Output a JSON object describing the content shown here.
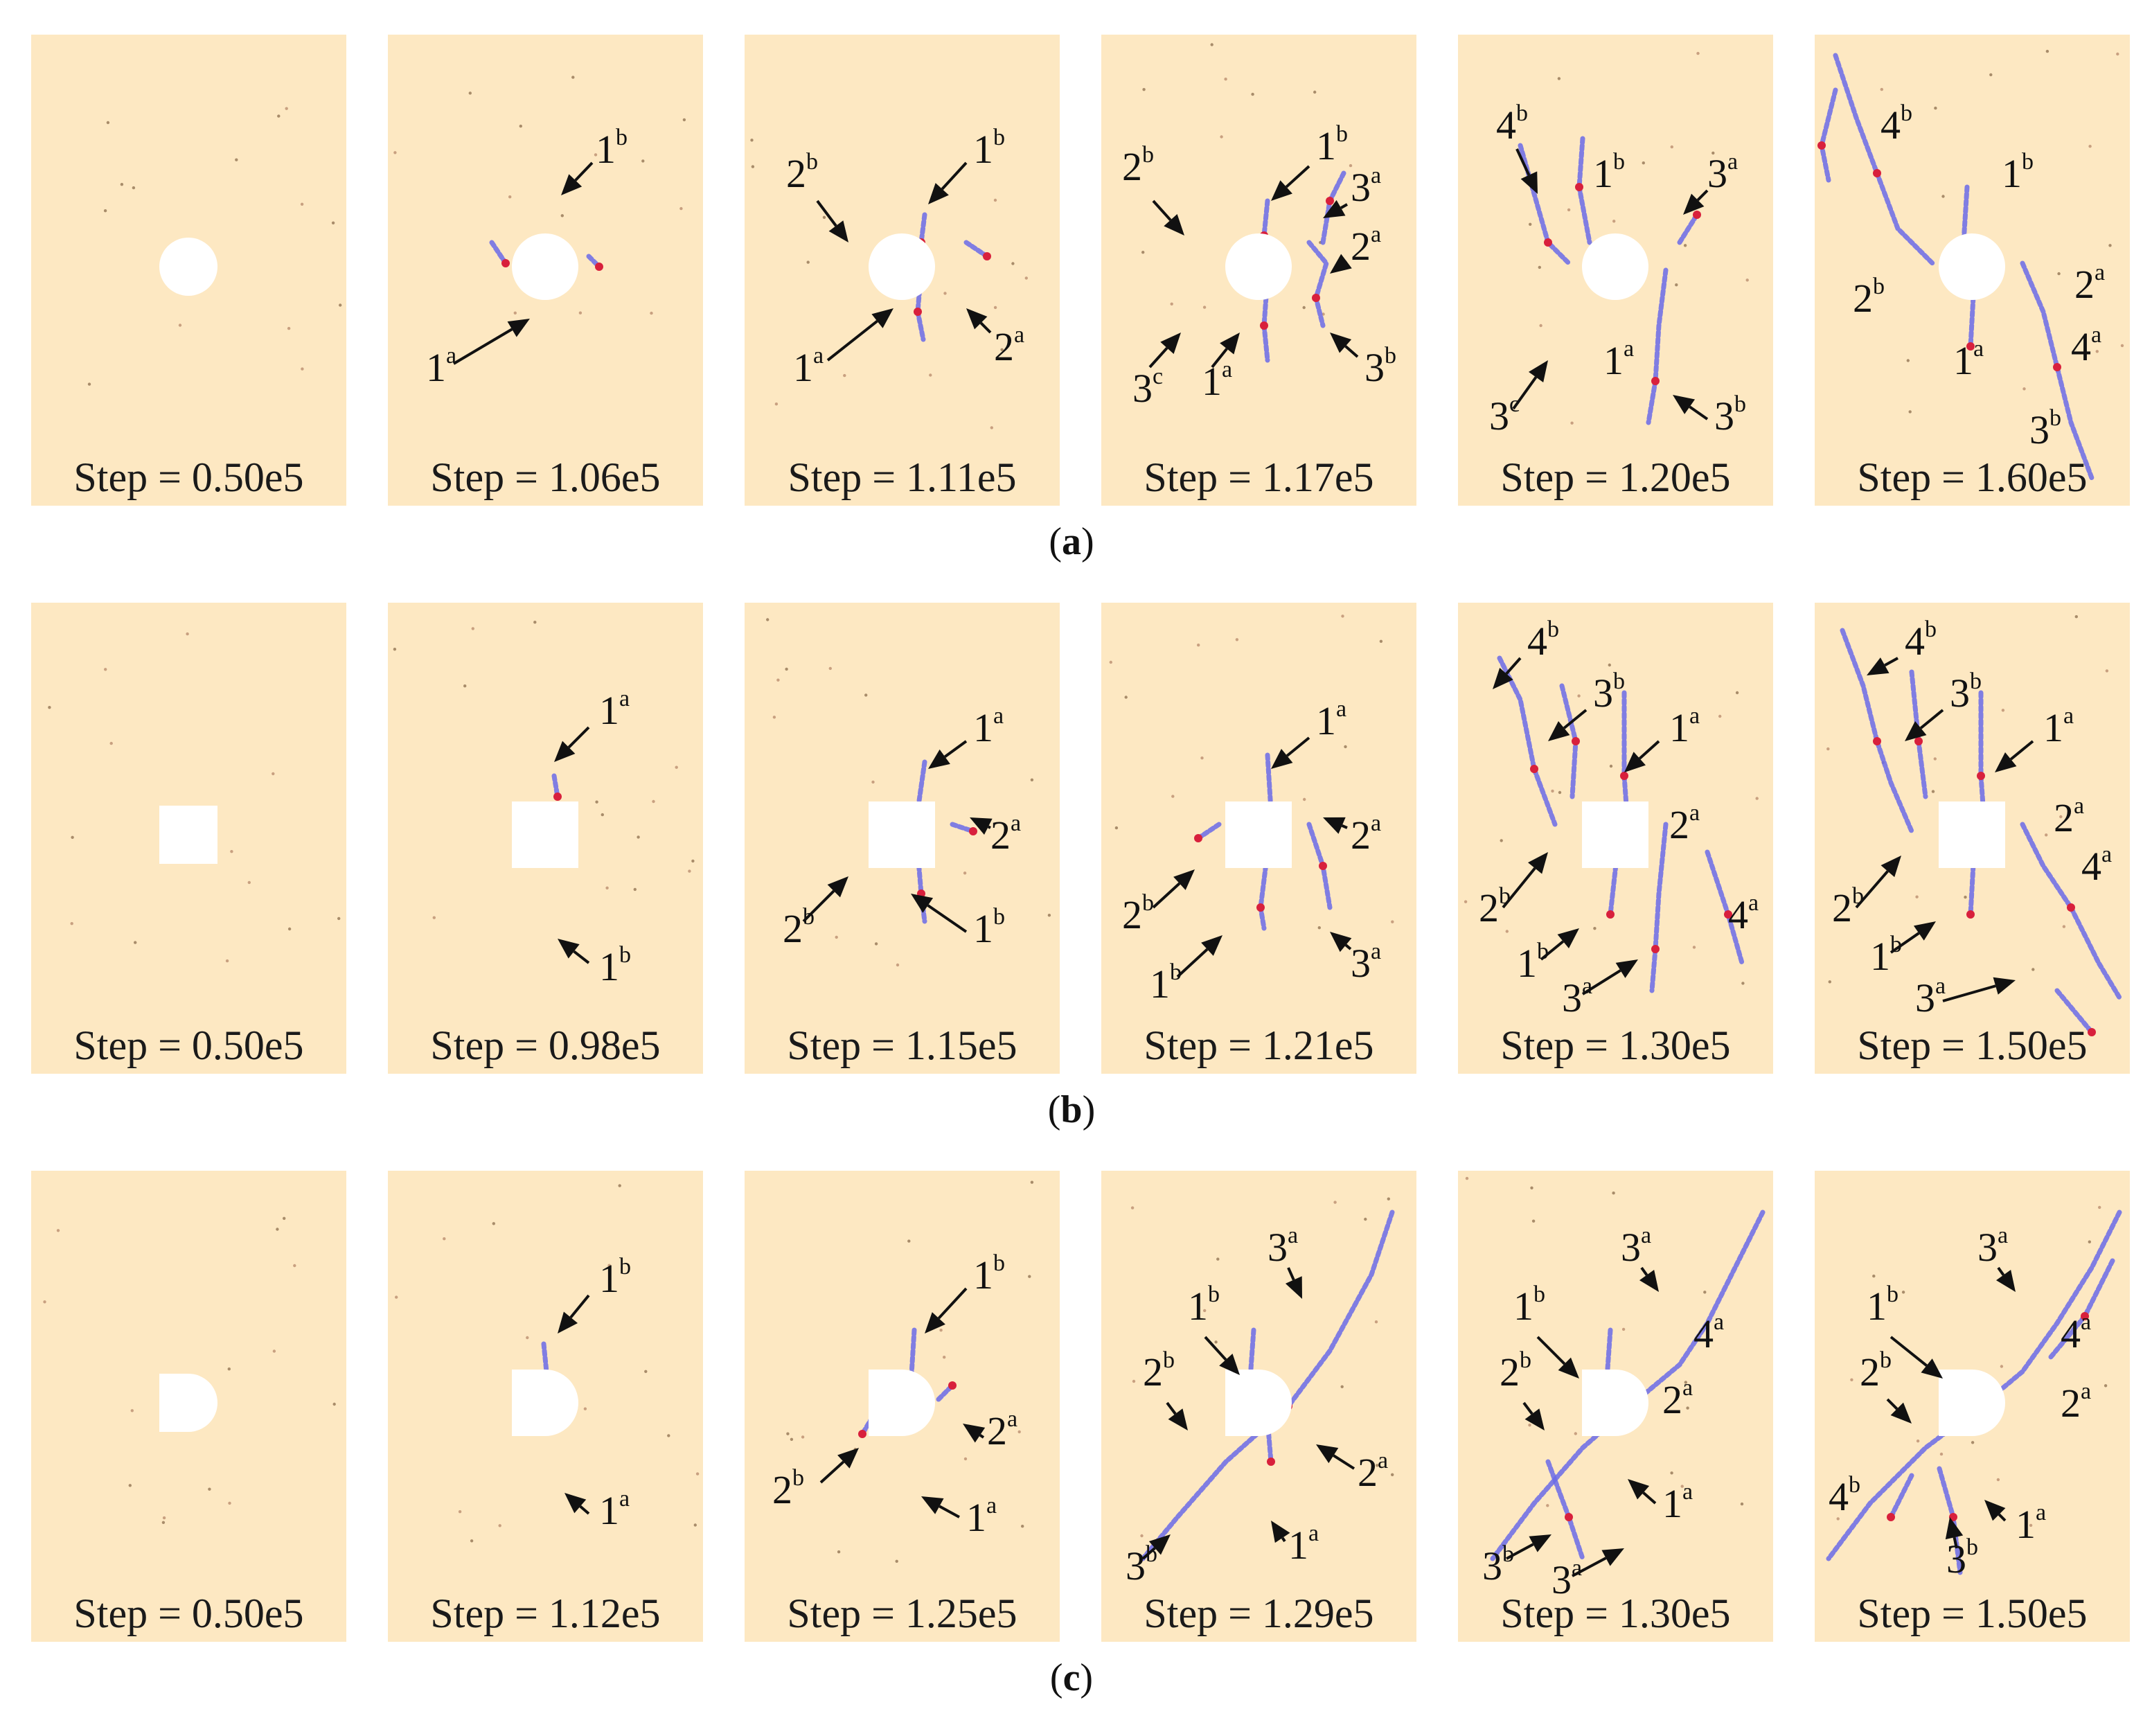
{
  "colors": {
    "background": "#fde8c2",
    "crack_tension": "#6a6ae8",
    "crack_shear": "#d8203c",
    "arrow": "#111111"
  },
  "rows": [
    {
      "caption": "a",
      "hole_shape": "circle",
      "panels": [
        {
          "step": "Step = 0.50e5",
          "labels": []
        },
        {
          "step": "Step = 1.06e5",
          "labels": [
            {
              "base": "1",
              "sup": "b"
            },
            {
              "base": "1",
              "sup": "a"
            }
          ]
        },
        {
          "step": "Step = 1.11e5",
          "labels": [
            {
              "base": "1",
              "sup": "b"
            },
            {
              "base": "2",
              "sup": "b"
            },
            {
              "base": "2",
              "sup": "a"
            },
            {
              "base": "1",
              "sup": "a"
            }
          ]
        },
        {
          "step": "Step = 1.17e5",
          "labels": [
            {
              "base": "1",
              "sup": "b"
            },
            {
              "base": "2",
              "sup": "b"
            },
            {
              "base": "3",
              "sup": "a"
            },
            {
              "base": "2",
              "sup": "a"
            },
            {
              "base": "3",
              "sup": "c"
            },
            {
              "base": "1",
              "sup": "a"
            },
            {
              "base": "3",
              "sup": "b"
            }
          ]
        },
        {
          "step": "Step = 1.20e5",
          "labels": [
            {
              "base": "4",
              "sup": "b"
            },
            {
              "base": "1",
              "sup": "b"
            },
            {
              "base": "3",
              "sup": "a"
            },
            {
              "base": "1",
              "sup": "a"
            },
            {
              "base": "3",
              "sup": "c"
            },
            {
              "base": "3",
              "sup": "b"
            }
          ]
        },
        {
          "step": "Step = 1.60e5",
          "labels": [
            {
              "base": "4",
              "sup": "b"
            },
            {
              "base": "1",
              "sup": "b"
            },
            {
              "base": "2",
              "sup": "b"
            },
            {
              "base": "2",
              "sup": "a"
            },
            {
              "base": "1",
              "sup": "a"
            },
            {
              "base": "4",
              "sup": "a"
            },
            {
              "base": "3",
              "sup": "b"
            }
          ]
        }
      ]
    },
    {
      "caption": "b",
      "hole_shape": "square",
      "panels": [
        {
          "step": "Step = 0.50e5",
          "labels": []
        },
        {
          "step": "Step = 0.98e5",
          "labels": [
            {
              "base": "1",
              "sup": "a"
            },
            {
              "base": "1",
              "sup": "b"
            }
          ]
        },
        {
          "step": "Step = 1.15e5",
          "labels": [
            {
              "base": "1",
              "sup": "a"
            },
            {
              "base": "2",
              "sup": "a"
            },
            {
              "base": "2",
              "sup": "b"
            },
            {
              "base": "1",
              "sup": "b"
            }
          ]
        },
        {
          "step": "Step = 1.21e5",
          "labels": [
            {
              "base": "1",
              "sup": "a"
            },
            {
              "base": "2",
              "sup": "a"
            },
            {
              "base": "2",
              "sup": "b"
            },
            {
              "base": "1",
              "sup": "b"
            },
            {
              "base": "3",
              "sup": "a"
            }
          ]
        },
        {
          "step": "Step = 1.30e5",
          "labels": [
            {
              "base": "4",
              "sup": "b"
            },
            {
              "base": "3",
              "sup": "b"
            },
            {
              "base": "1",
              "sup": "a"
            },
            {
              "base": "2",
              "sup": "a"
            },
            {
              "base": "2",
              "sup": "b"
            },
            {
              "base": "4",
              "sup": "a"
            },
            {
              "base": "1",
              "sup": "b"
            },
            {
              "base": "3",
              "sup": "a"
            }
          ]
        },
        {
          "step": "Step = 1.50e5",
          "labels": [
            {
              "base": "4",
              "sup": "b"
            },
            {
              "base": "3",
              "sup": "b"
            },
            {
              "base": "1",
              "sup": "a"
            },
            {
              "base": "2",
              "sup": "a"
            },
            {
              "base": "2",
              "sup": "b"
            },
            {
              "base": "4",
              "sup": "a"
            },
            {
              "base": "1",
              "sup": "b"
            },
            {
              "base": "3",
              "sup": "a"
            }
          ]
        }
      ]
    },
    {
      "caption": "c",
      "hole_shape": "d-shape",
      "panels": [
        {
          "step": "Step = 0.50e5",
          "labels": []
        },
        {
          "step": "Step = 1.12e5",
          "labels": [
            {
              "base": "1",
              "sup": "b"
            },
            {
              "base": "1",
              "sup": "a"
            }
          ]
        },
        {
          "step": "Step = 1.25e5",
          "labels": [
            {
              "base": "1",
              "sup": "b"
            },
            {
              "base": "2",
              "sup": "b"
            },
            {
              "base": "2",
              "sup": "a"
            },
            {
              "base": "1",
              "sup": "a"
            }
          ]
        },
        {
          "step": "Step = 1.29e5",
          "labels": [
            {
              "base": "3",
              "sup": "a"
            },
            {
              "base": "1",
              "sup": "b"
            },
            {
              "base": "2",
              "sup": "b"
            },
            {
              "base": "2",
              "sup": "a"
            },
            {
              "base": "3",
              "sup": "b"
            },
            {
              "base": "1",
              "sup": "a"
            }
          ]
        },
        {
          "step": "Step = 1.30e5",
          "labels": [
            {
              "base": "3",
              "sup": "a"
            },
            {
              "base": "1",
              "sup": "b"
            },
            {
              "base": "4",
              "sup": "a"
            },
            {
              "base": "2",
              "sup": "b"
            },
            {
              "base": "2",
              "sup": "a"
            },
            {
              "base": "1",
              "sup": "a"
            },
            {
              "base": "3",
              "sup": "b"
            },
            {
              "base": "3",
              "sup": "a"
            }
          ]
        },
        {
          "step": "Step = 1.50e5",
          "labels": [
            {
              "base": "3",
              "sup": "a"
            },
            {
              "base": "1",
              "sup": "b"
            },
            {
              "base": "4",
              "sup": "a"
            },
            {
              "base": "2",
              "sup": "b"
            },
            {
              "base": "2",
              "sup": "a"
            },
            {
              "base": "4",
              "sup": "b"
            },
            {
              "base": "3",
              "sup": "b"
            },
            {
              "base": "1",
              "sup": "a"
            }
          ]
        }
      ]
    }
  ]
}
